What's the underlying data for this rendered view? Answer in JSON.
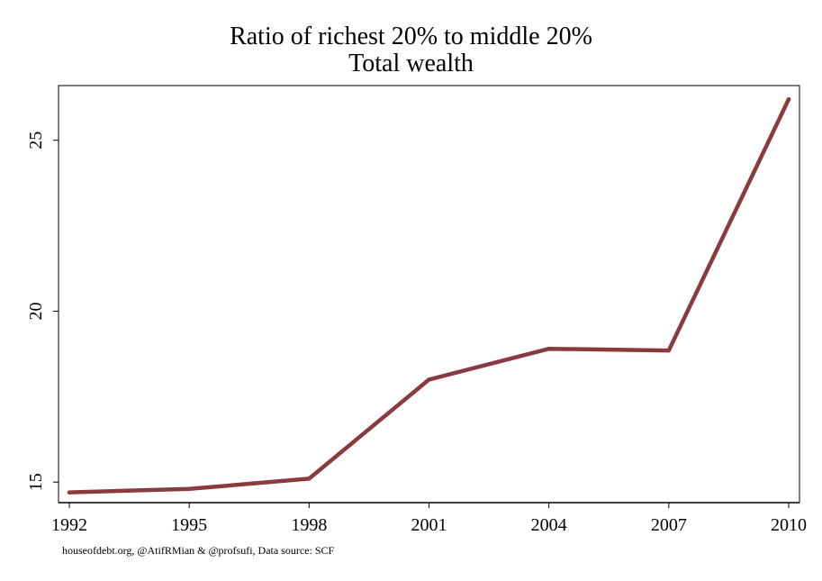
{
  "chart_data": {
    "type": "line",
    "title": "Ratio of richest 20% to middle 20%",
    "subtitle": "Total wealth",
    "xlabel": "",
    "ylabel": "",
    "x": [
      1992,
      1995,
      1998,
      2001,
      2004,
      2007,
      2010
    ],
    "series": [
      {
        "values": [
          14.7,
          14.8,
          15.1,
          18.0,
          18.9,
          18.85,
          26.2
        ]
      }
    ],
    "x_ticks": [
      "1992",
      "1995",
      "1998",
      "2001",
      "2004",
      "2007",
      "2010"
    ],
    "y_ticks": [
      "15",
      "20",
      "25"
    ],
    "xlim": [
      1992,
      2010
    ],
    "ylim": [
      14.4,
      26.6
    ],
    "grid": false,
    "line_color": "#8b3a3e"
  },
  "credit": "houseofdebt.org, @AtifRMian & @profsufi, Data source: SCF"
}
